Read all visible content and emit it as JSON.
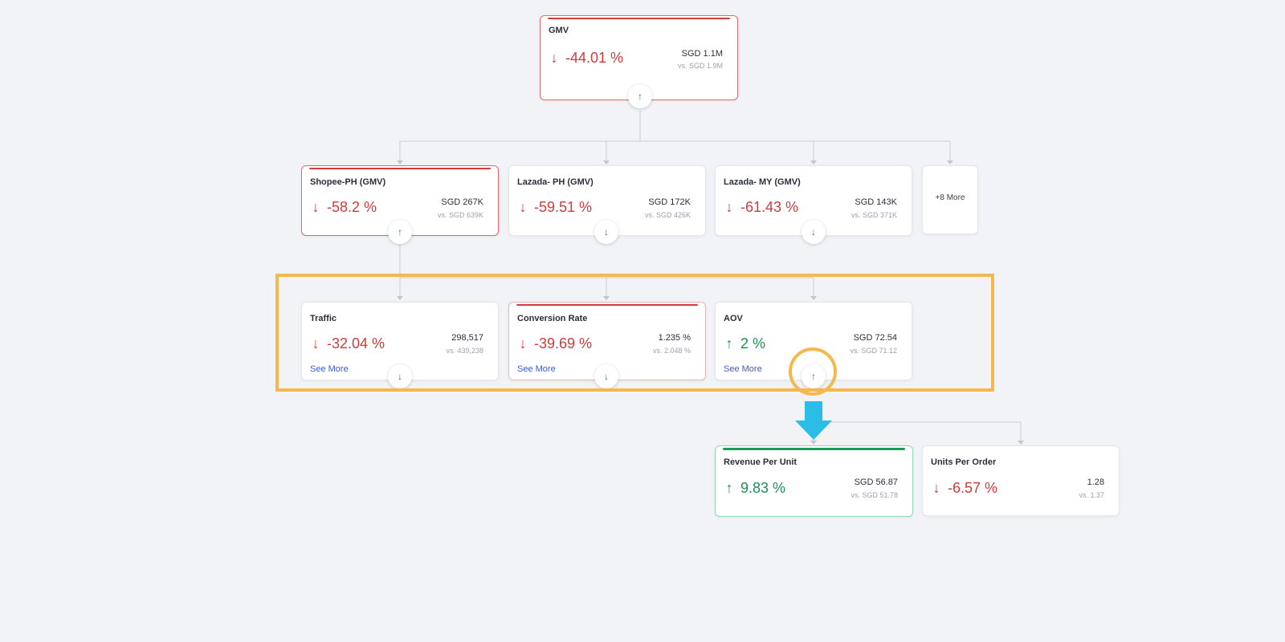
{
  "colors": {
    "negative": "#d23a3a",
    "positive": "#1e8f55",
    "highlight": "#f6b74f",
    "cue_arrow": "#2bbde8",
    "link": "#3a5bd9"
  },
  "root": {
    "title": "GMV",
    "change_icon": "arrow-down-icon",
    "change_symbol": "↓",
    "change": "-44.01 %",
    "value": "SGD 1.1M",
    "previous": "vs. SGD 1.9M",
    "toggle_icon": "arrow-up-icon",
    "toggle_symbol": "↑",
    "trend": "negative"
  },
  "level1": [
    {
      "title": "Shopee-PH (GMV)",
      "change_symbol": "↓",
      "change": "-58.2 %",
      "value": "SGD 267K",
      "previous": "vs. SGD 639K",
      "toggle_symbol": "↑",
      "expanded": true
    },
    {
      "title": "Lazada- PH (GMV)",
      "change_symbol": "↓",
      "change": "-59.51 %",
      "value": "SGD 172K",
      "previous": "vs. SGD 426K",
      "toggle_symbol": "↓",
      "expanded": false
    },
    {
      "title": "Lazada- MY (GMV)",
      "change_symbol": "↓",
      "change": "-61.43 %",
      "value": "SGD 143K",
      "previous": "vs. SGD 371K",
      "toggle_symbol": "↓",
      "expanded": false
    }
  ],
  "more": {
    "label": "+8 More"
  },
  "level2": [
    {
      "title": "Traffic",
      "change_symbol": "↓",
      "change": "-32.04 %",
      "value": "298,517",
      "previous": "vs. 439,238",
      "link": "See More",
      "toggle_symbol": "↓"
    },
    {
      "title": "Conversion Rate",
      "change_symbol": "↓",
      "change": "-39.69 %",
      "value": "1.235 %",
      "previous": "vs. 2.048 %",
      "link": "See More",
      "toggle_symbol": "↓"
    },
    {
      "title": "AOV",
      "change_symbol": "↑",
      "change": "2 %",
      "value": "SGD 72.54",
      "previous": "vs. SGD 71.12",
      "link": "See More",
      "toggle_symbol": "↑"
    }
  ],
  "level3": [
    {
      "title": "Revenue Per Unit",
      "change_symbol": "↑",
      "change": "9.83 %",
      "value": "SGD 56.87",
      "previous": "vs. SGD 51.78"
    },
    {
      "title": "Units Per Order",
      "change_symbol": "↓",
      "change": "-6.57 %",
      "value": "1.28",
      "previous": "vs. 1.37"
    }
  ]
}
